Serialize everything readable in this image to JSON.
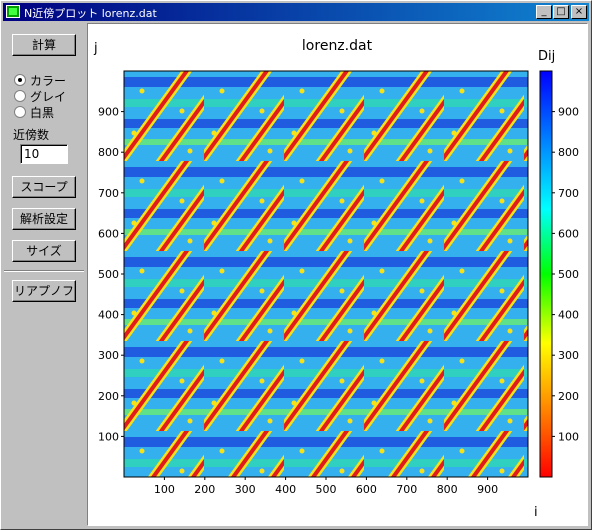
{
  "window": {
    "title": "N近傍プロット lorenz.dat",
    "controls": [
      "_",
      "□",
      "×"
    ]
  },
  "sidebar": {
    "calc_button": "計算",
    "color_modes": [
      {
        "label": "カラー",
        "selected": true
      },
      {
        "label": "グレイ",
        "selected": false
      },
      {
        "label": "白黒",
        "selected": false
      }
    ],
    "neighbors_label": "近傍数",
    "neighbors_value": "10",
    "scope_button": "スコープ",
    "analysis_button": "解析設定",
    "size_button": "サイズ",
    "riapunov_button": "リアプノフ"
  },
  "plot": {
    "title": "lorenz.dat",
    "ylabel": "j",
    "xlabel": "i",
    "colorbar_label": "Dij"
  },
  "chart_data": {
    "type": "heatmap",
    "title": "lorenz.dat",
    "xlabel": "i",
    "ylabel": "j",
    "xlim": [
      0,
      1000
    ],
    "ylim": [
      0,
      1000
    ],
    "xticks": [
      "100",
      "200",
      "300",
      "400",
      "500",
      "600",
      "700",
      "800",
      "900"
    ],
    "yticks": [
      "100",
      "200",
      "300",
      "400",
      "500",
      "600",
      "700",
      "800",
      "900"
    ],
    "colorbar": {
      "label": "Dij",
      "range": [
        0,
        1000
      ],
      "ticks": [
        "100",
        "200",
        "300",
        "400",
        "500",
        "600",
        "700",
        "800",
        "900"
      ],
      "colors": [
        "#ff0000",
        "#ff8000",
        "#ffff00",
        "#00ff00",
        "#00ffff",
        "#0080ff",
        "#0000ff"
      ]
    }
  }
}
